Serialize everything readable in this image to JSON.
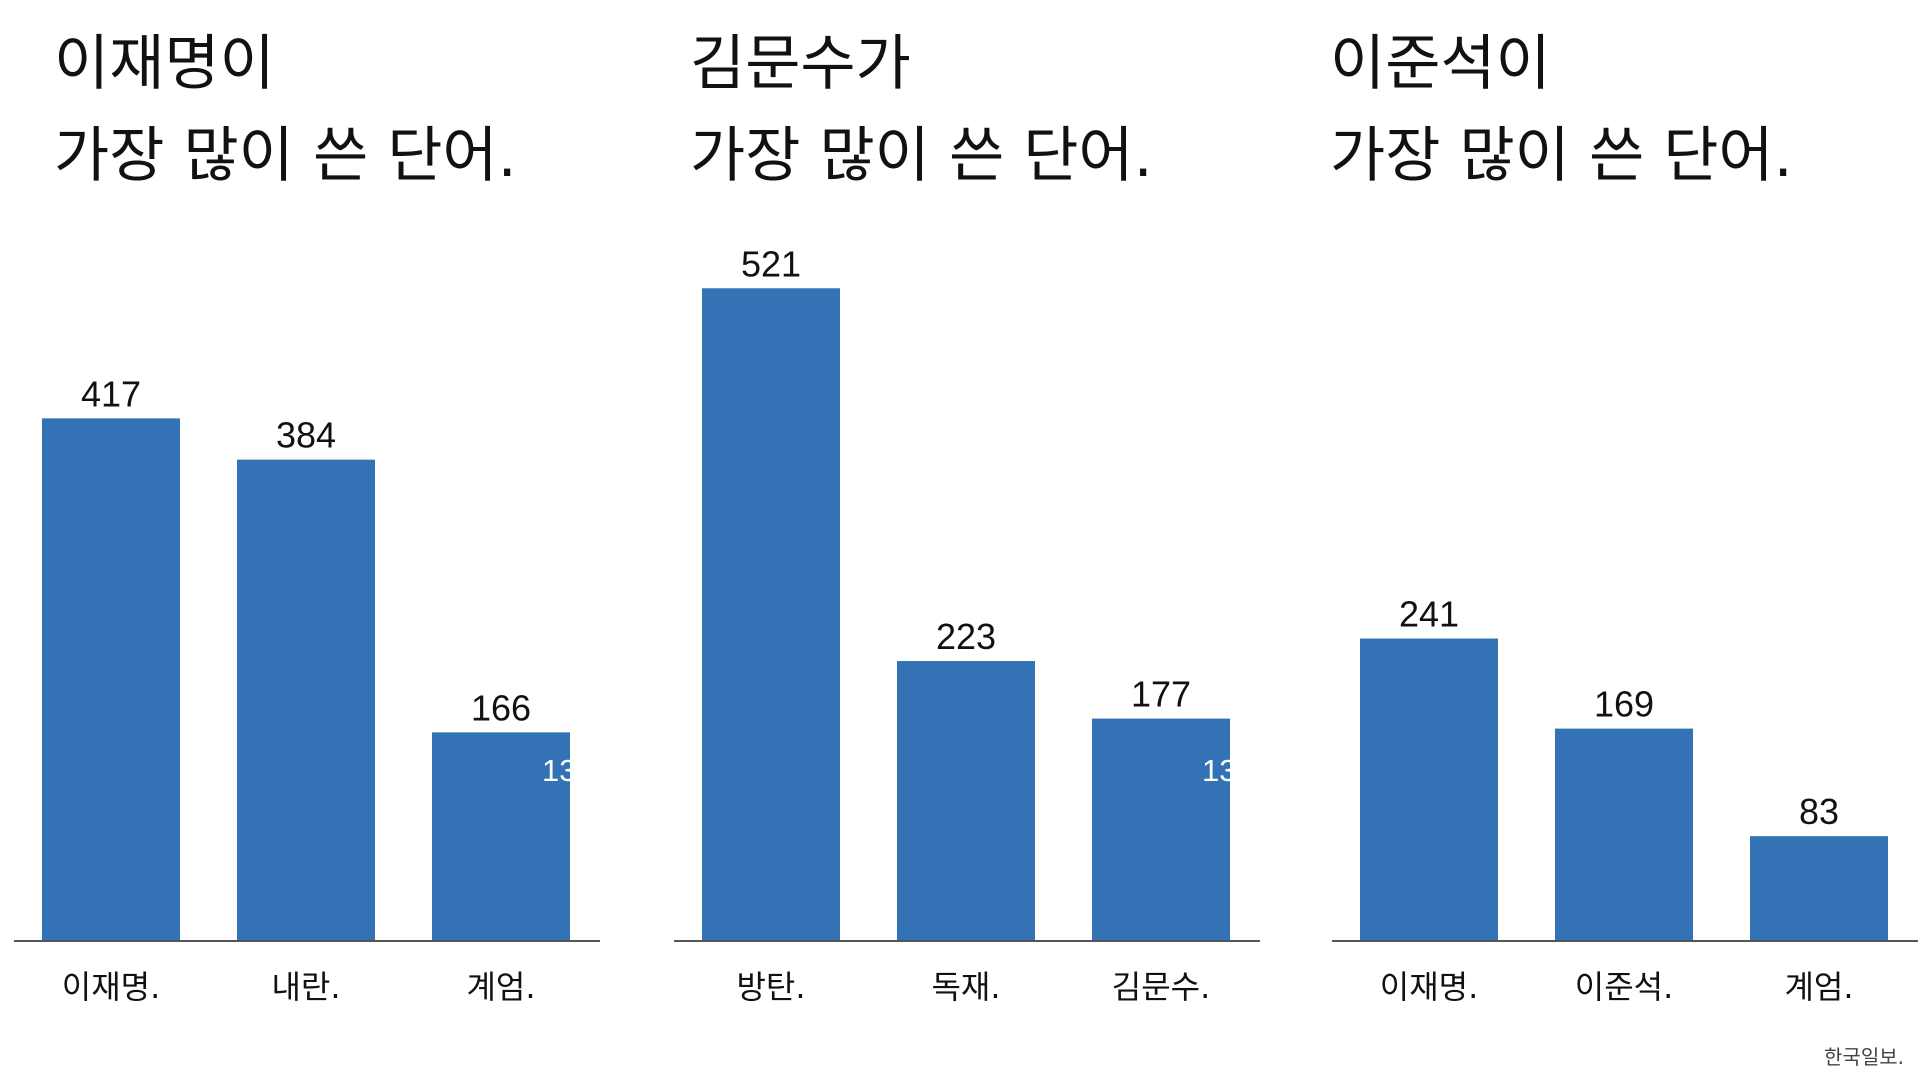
{
  "colors": {
    "bar": "#3373b5",
    "text": "#111111",
    "axis": "#555555"
  },
  "chart_data": [
    {
      "type": "bar",
      "title_line1": "이재명이",
      "title_line2": "가장 많이 쓴 단어.",
      "categories": [
        "이재명.",
        "내란.",
        "계엄."
      ],
      "values": [
        417,
        384,
        166
      ],
      "ylim": [
        0,
        550
      ],
      "clipped_label": "13"
    },
    {
      "type": "bar",
      "title_line1": "김문수가",
      "title_line2": "가장 많이 쓴 단어.",
      "categories": [
        "방탄.",
        "독재.",
        "김문수."
      ],
      "values": [
        521,
        223,
        177
      ],
      "ylim": [
        0,
        550
      ],
      "clipped_label": "13"
    },
    {
      "type": "bar",
      "title_line1": "이준석이",
      "title_line2": "가장 많이 쓴 단어.",
      "categories": [
        "이재명.",
        "이준석.",
        "계엄."
      ],
      "values": [
        241,
        169,
        83
      ],
      "ylim": [
        0,
        550
      ],
      "clipped_label": ""
    }
  ],
  "source": "한국일보."
}
